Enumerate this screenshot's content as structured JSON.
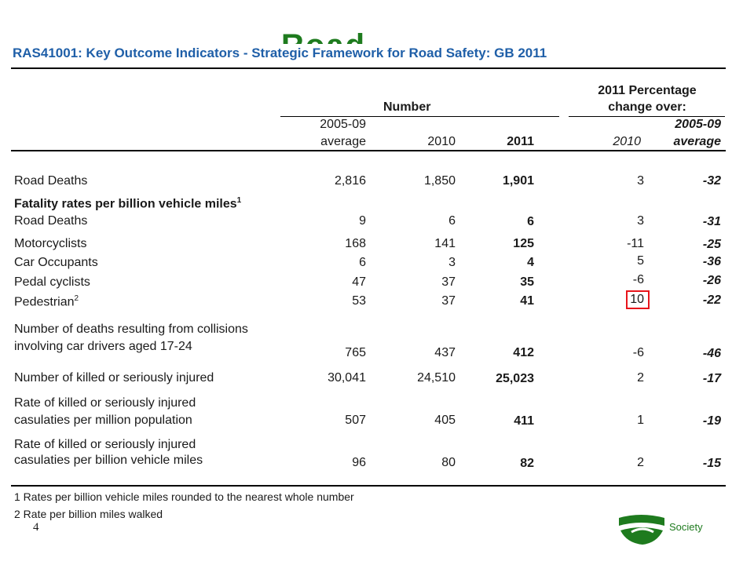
{
  "background_heading": "Road",
  "table_title": "RAS41001: Key Outcome Indicators - Strategic Framework for Road Safety: GB 2011",
  "headers": {
    "number_group": "Number",
    "pct_group_line1": "2011 Percentage",
    "pct_group_line2": "change over:",
    "col1_line1": "2005-09",
    "col1_line2": "average",
    "col2": "2010",
    "col3": "2011",
    "col4": "2010",
    "col5_line1": "2005-09",
    "col5_line2": "average"
  },
  "rows": [
    {
      "label": "Road Deaths",
      "v1": "2,816",
      "v2": "1,850",
      "v3": "1,901",
      "p1": "3",
      "p2": "-32"
    },
    {
      "label": "Fatality rates per billion vehicle miles",
      "sup": "1"
    },
    {
      "label": "Road Deaths",
      "v1": "9",
      "v2": "6",
      "v3": "6",
      "p1": "3",
      "p2": "-31"
    },
    {
      "label": "Motorcyclists",
      "v1": "168",
      "v2": "141",
      "v3": "125",
      "p1": "-11",
      "p2": "-25"
    },
    {
      "label": "Car Occupants",
      "v1": "6",
      "v2": "3",
      "v3": "4",
      "p1": "5",
      "p2": "-36"
    },
    {
      "label": "Pedal cyclists",
      "v1": "47",
      "v2": "37",
      "v3": "35",
      "p1": "-6",
      "p2": "-26"
    },
    {
      "label": "Pedestrian",
      "sup": "2",
      "v1": "53",
      "v2": "37",
      "v3": "41",
      "p1": "10",
      "p2": "-22"
    },
    {
      "label_line1": "Number of deaths resulting from collisions",
      "label_line2": "involving car drivers aged 17-24",
      "v1": "765",
      "v2": "437",
      "v3": "412",
      "p1": "-6",
      "p2": "-46"
    },
    {
      "label": "Number of killed or seriously injured",
      "v1": "30,041",
      "v2": "24,510",
      "v3": "25,023",
      "p1": "2",
      "p2": "-17"
    },
    {
      "label_line1": "Rate of killed or seriously injured",
      "label_line2": "casulaties per million population",
      "v1": "507",
      "v2": "405",
      "v3": "411",
      "p1": "1",
      "p2": "-19"
    },
    {
      "label_line1": "Rate of killed or seriously injured",
      "label_line2": "casulaties per billion vehicle miles",
      "v1": "96",
      "v2": "80",
      "v3": "82",
      "p1": "2",
      "p2": "-15"
    }
  ],
  "footnotes": [
    "1 Rates per billion vehicle miles rounded to the nearest whole number",
    "2 Rate per billion miles walked"
  ],
  "page_number": "4",
  "logo_text": "Society",
  "colors": {
    "title": "#1f5fa8",
    "highlight_box": "#e8141b",
    "brand_green": "#1e7b1e"
  }
}
